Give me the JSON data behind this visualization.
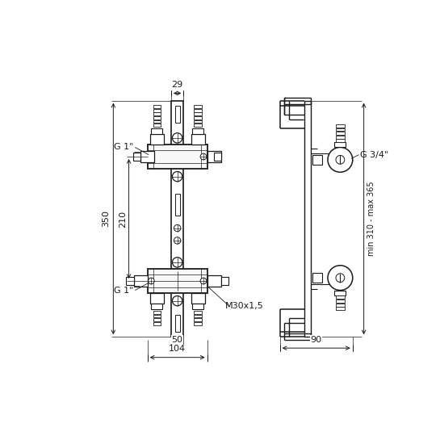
{
  "bg_color": "#ffffff",
  "lc": "#1a1a1a",
  "dc": "#1a1a1a",
  "figsize": [
    5.45,
    5.45
  ],
  "dpi": 100,
  "annotations": {
    "top_dim": "29",
    "dim_50": "50",
    "dim_104": "104",
    "dim_350": "350",
    "dim_210": "210",
    "g1_top": "G 1\"",
    "g1_bot": "G 1\"",
    "g34": "G 3/4\"",
    "m30": "M30x1,5",
    "dim_90": "90",
    "dim_range": "min 310 - max 365"
  }
}
